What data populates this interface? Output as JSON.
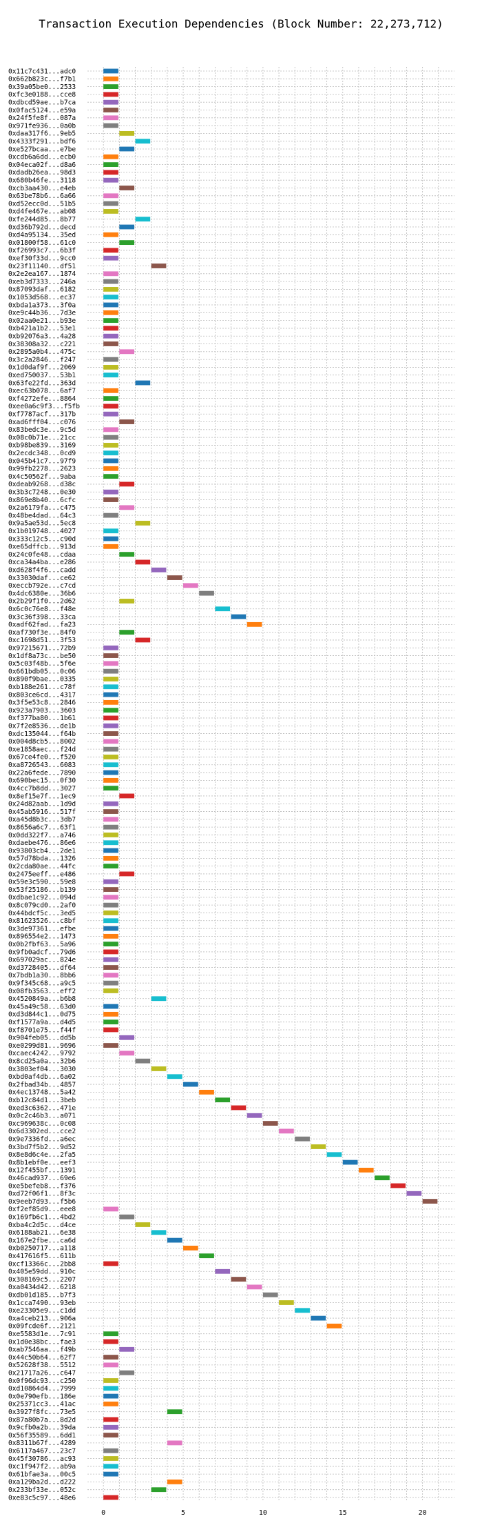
{
  "chart_data": {
    "type": "bar",
    "orientation": "horizontal",
    "title": "Transaction Execution Dependencies (Block Number: 22,273,712)",
    "xlim": [
      -1,
      22
    ],
    "xticks": [
      "0",
      "5",
      "10",
      "15",
      "20"
    ],
    "grid": true,
    "palette": [
      "#1f77b4",
      "#ff7f0e",
      "#2ca02c",
      "#d62728",
      "#9467bd",
      "#8c564b",
      "#e377c2",
      "#7f7f7f",
      "#bcbd22",
      "#17becf"
    ],
    "rows": [
      {
        "label": "0x11c7c431...adc0",
        "start": 0
      },
      {
        "label": "0x662b823c...f7b1",
        "start": 0
      },
      {
        "label": "0x39a05be0...2533",
        "start": 0
      },
      {
        "label": "0xfc3e0188...cce8",
        "start": 0
      },
      {
        "label": "0xdbcd59ae...b7ca",
        "start": 0
      },
      {
        "label": "0x0fac5124...e59a",
        "start": 0
      },
      {
        "label": "0x24f5fe8f...087a",
        "start": 0
      },
      {
        "label": "0x971fe936...0a0b",
        "start": 0
      },
      {
        "label": "0xdaa317f6...9eb5",
        "start": 1
      },
      {
        "label": "0x4333f291...bdf6",
        "start": 2
      },
      {
        "label": "0xe527bcaa...e7be",
        "start": 1
      },
      {
        "label": "0xcdb6a6dd...ecb0",
        "start": 0
      },
      {
        "label": "0x04eca02f...d8a6",
        "start": 0
      },
      {
        "label": "0xdadb26ea...98d3",
        "start": 0
      },
      {
        "label": "0x680b46fe...3118",
        "start": 0
      },
      {
        "label": "0xcb3aa430...e4eb",
        "start": 1
      },
      {
        "label": "0x63be78b6...6a66",
        "start": 0
      },
      {
        "label": "0xd52ecc0d...51b5",
        "start": 0
      },
      {
        "label": "0xd4fe467e...ab08",
        "start": 0
      },
      {
        "label": "0xfe244d85...8b77",
        "start": 2
      },
      {
        "label": "0xd36b792d...decd",
        "start": 1
      },
      {
        "label": "0xd4a95134...35ed",
        "start": 0
      },
      {
        "label": "0x01800f58...61c0",
        "start": 1
      },
      {
        "label": "0xf26993c7...6b3f",
        "start": 0
      },
      {
        "label": "0xef30f33d...9cc0",
        "start": 0
      },
      {
        "label": "0x23f11140...df51",
        "start": 3
      },
      {
        "label": "0x2e2ea167...1874",
        "start": 0
      },
      {
        "label": "0xeb3d7333...246a",
        "start": 0
      },
      {
        "label": "0x87093daf...6182",
        "start": 0
      },
      {
        "label": "0x1053d568...ec37",
        "start": 0
      },
      {
        "label": "0xbda1a373...3f0a",
        "start": 0
      },
      {
        "label": "0xe9c44b36...7d3e",
        "start": 0
      },
      {
        "label": "0x02aa0e21...b93e",
        "start": 0
      },
      {
        "label": "0xb421a1b2...53e1",
        "start": 0
      },
      {
        "label": "0xb92076a3...4a28",
        "start": 0
      },
      {
        "label": "0x38308a32...c221",
        "start": 0
      },
      {
        "label": "0x2895a0b4...475c",
        "start": 1
      },
      {
        "label": "0x3c2a2846...f247",
        "start": 0
      },
      {
        "label": "0x1d0daf9f...2069",
        "start": 0
      },
      {
        "label": "0xed750037...53b1",
        "start": 0
      },
      {
        "label": "0x63fe22fd...363d",
        "start": 2
      },
      {
        "label": "0xec63b078...6af7",
        "start": 0
      },
      {
        "label": "0xf4272efe...8864",
        "start": 0
      },
      {
        "label": "0xee0a6c9f3...f5fb",
        "start": 0
      },
      {
        "label": "0xf7787acf...317b",
        "start": 0
      },
      {
        "label": "0xad6fff04...c076",
        "start": 1
      },
      {
        "label": "0x83bedc3e...9c5d",
        "start": 0
      },
      {
        "label": "0x08c0b71e...21cc",
        "start": 0
      },
      {
        "label": "0xb98be839...3169",
        "start": 0
      },
      {
        "label": "0x2ecdc348...0cd9",
        "start": 0
      },
      {
        "label": "0x045b41c7...97f9",
        "start": 0
      },
      {
        "label": "0x99fb2278...2623",
        "start": 0
      },
      {
        "label": "0x4c50562f...9aba",
        "start": 0
      },
      {
        "label": "0xdeab9268...d38c",
        "start": 1
      },
      {
        "label": "0x3b3c7248...0e30",
        "start": 0
      },
      {
        "label": "0x869e8b40...6cfc",
        "start": 0
      },
      {
        "label": "0x2a6179fa...c475",
        "start": 1
      },
      {
        "label": "0x48be4dad...64c3",
        "start": 0
      },
      {
        "label": "0x9a5ae53d...5ec8",
        "start": 2
      },
      {
        "label": "0x1b019748...4027",
        "start": 0
      },
      {
        "label": "0x333c12c5...c90d",
        "start": 0
      },
      {
        "label": "0xe65dffcb...913d",
        "start": 0
      },
      {
        "label": "0x24c0fe48...cdaa",
        "start": 1
      },
      {
        "label": "0xca34a4ba...e286",
        "start": 2
      },
      {
        "label": "0xd628f4f6...cadd",
        "start": 3
      },
      {
        "label": "0x33030daf...ce62",
        "start": 4
      },
      {
        "label": "0xeccb792e...c7cd",
        "start": 5
      },
      {
        "label": "0x4dc6380e...36b6",
        "start": 6
      },
      {
        "label": "0x2b29f1f0...2d62",
        "start": 1
      },
      {
        "label": "0x6c0c76e8...f48e",
        "start": 7
      },
      {
        "label": "0x3c36f398...33ca",
        "start": 8
      },
      {
        "label": "0xadf62fad...fa23",
        "start": 9
      },
      {
        "label": "0xaf730f3e...84f0",
        "start": 1
      },
      {
        "label": "0xc1698d51...3f53",
        "start": 2
      },
      {
        "label": "0x97215671...72b9",
        "start": 0
      },
      {
        "label": "0x1df8a73c...be50",
        "start": 0
      },
      {
        "label": "0x5c03f48b...5f6e",
        "start": 0
      },
      {
        "label": "0x661bdb05...0c06",
        "start": 0
      },
      {
        "label": "0x890f9bae...0335",
        "start": 0
      },
      {
        "label": "0xb188e261...c78f",
        "start": 0
      },
      {
        "label": "0x803ce6cd...4317",
        "start": 0
      },
      {
        "label": "0x3f5e53c8...2846",
        "start": 0
      },
      {
        "label": "0x923a7903...3603",
        "start": 0
      },
      {
        "label": "0xf377ba80...1b61",
        "start": 0
      },
      {
        "label": "0x7f2e8536...de1b",
        "start": 0
      },
      {
        "label": "0xdc135044...f64b",
        "start": 0
      },
      {
        "label": "0x004d8cb5...8002",
        "start": 0
      },
      {
        "label": "0xe1858aec...f24d",
        "start": 0
      },
      {
        "label": "0x67ce4fe0...f520",
        "start": 0
      },
      {
        "label": "0xa8726543...6083",
        "start": 0
      },
      {
        "label": "0x22a6fede...7890",
        "start": 0
      },
      {
        "label": "0x690bec15...0f30",
        "start": 0
      },
      {
        "label": "0x4cc7b8dd...3027",
        "start": 0
      },
      {
        "label": "0x8ef15e7f...1ec9",
        "start": 1
      },
      {
        "label": "0x24d82aab...1d9d",
        "start": 0
      },
      {
        "label": "0x45ab5916...517f",
        "start": 0
      },
      {
        "label": "0xa45d8b3c...3db7",
        "start": 0
      },
      {
        "label": "0x8656a6c7...63f1",
        "start": 0
      },
      {
        "label": "0x0dd322f7...a746",
        "start": 0
      },
      {
        "label": "0xdaebe476...86e6",
        "start": 0
      },
      {
        "label": "0x93803cb4...2de1",
        "start": 0
      },
      {
        "label": "0x57d78bda...1326",
        "start": 0
      },
      {
        "label": "0x2cda80ae...44fc",
        "start": 0
      },
      {
        "label": "0x2475eeff...e486",
        "start": 1
      },
      {
        "label": "0x59e3c590...59e8",
        "start": 0
      },
      {
        "label": "0x53f25186...b139",
        "start": 0
      },
      {
        "label": "0xdbae1c92...094d",
        "start": 0
      },
      {
        "label": "0x8c079cd0...2af0",
        "start": 0
      },
      {
        "label": "0x44bdcf5c...3ed5",
        "start": 0
      },
      {
        "label": "0x81623526...c8bf",
        "start": 0
      },
      {
        "label": "0x3de97361...efbe",
        "start": 0
      },
      {
        "label": "0x896554e2...1473",
        "start": 0
      },
      {
        "label": "0x0b2fbf63...5a96",
        "start": 0
      },
      {
        "label": "0x9fb0adcf...79d6",
        "start": 0
      },
      {
        "label": "0x697029ac...824e",
        "start": 0
      },
      {
        "label": "0xd3728405...df64",
        "start": 0
      },
      {
        "label": "0x7bdb1a30...8bb6",
        "start": 0
      },
      {
        "label": "0x9f345c68...a9c5",
        "start": 0
      },
      {
        "label": "0x08fb3563...eff2",
        "start": 0
      },
      {
        "label": "0x4520849a...b6b8",
        "start": 3
      },
      {
        "label": "0x45a49c58...63d0",
        "start": 0
      },
      {
        "label": "0xd3d844c1...0d75",
        "start": 0
      },
      {
        "label": "0xf1577a9a...d4d5",
        "start": 0
      },
      {
        "label": "0xf8701e75...f44f",
        "start": 0
      },
      {
        "label": "0x904feb05...dd5b",
        "start": 1
      },
      {
        "label": "0xe0299d81...9696",
        "start": 0
      },
      {
        "label": "0xcaec4242...9792",
        "start": 1
      },
      {
        "label": "0x8cd25a0a...32b6",
        "start": 2
      },
      {
        "label": "0x3803ef04...3030",
        "start": 3
      },
      {
        "label": "0xbd0af4db...6a02",
        "start": 4
      },
      {
        "label": "0x2fbad34b...4857",
        "start": 5
      },
      {
        "label": "0x4ec13748...5a42",
        "start": 6
      },
      {
        "label": "0xb12c84d1...3beb",
        "start": 7
      },
      {
        "label": "0xed3c6362...471e",
        "start": 8
      },
      {
        "label": "0x0c2c46b3...a071",
        "start": 9
      },
      {
        "label": "0xc969638c...0c08",
        "start": 10
      },
      {
        "label": "0x6d3302ed...cce2",
        "start": 11
      },
      {
        "label": "0x9e7336fd...a6ec",
        "start": 12
      },
      {
        "label": "0x3bd7f5b2...9d52",
        "start": 13
      },
      {
        "label": "0x8e8d6c4e...2fa5",
        "start": 14
      },
      {
        "label": "0x8b1ebf0e...eef3",
        "start": 15
      },
      {
        "label": "0x12f455bf...1391",
        "start": 16
      },
      {
        "label": "0x46cad937...69e6",
        "start": 17
      },
      {
        "label": "0xe5befeb8...f376",
        "start": 18
      },
      {
        "label": "0xd72f06f1...8f3c",
        "start": 19
      },
      {
        "label": "0x9eeb7d93...f5b6",
        "start": 20
      },
      {
        "label": "0xf2ef85d9...eee8",
        "start": 0
      },
      {
        "label": "0x169fb6c1...4bd2",
        "start": 1
      },
      {
        "label": "0xba4c2d5c...d4ce",
        "start": 2
      },
      {
        "label": "0x6188ab21...6e38",
        "start": 3
      },
      {
        "label": "0x167e2fbe...ca6d",
        "start": 4
      },
      {
        "label": "0xb0250717...a118",
        "start": 5
      },
      {
        "label": "0x417616f5...611b",
        "start": 6
      },
      {
        "label": "0xcf13366c...2bb8",
        "start": 0
      },
      {
        "label": "0x405e59dd...910c",
        "start": 7
      },
      {
        "label": "0x308169c5...2207",
        "start": 8
      },
      {
        "label": "0xa0434d42...6218",
        "start": 9
      },
      {
        "label": "0xdb01d185...b7f3",
        "start": 10
      },
      {
        "label": "0x1cca7490...93eb",
        "start": 11
      },
      {
        "label": "0xe23305e9...c1dd",
        "start": 12
      },
      {
        "label": "0xa4ceb213...906a",
        "start": 13
      },
      {
        "label": "0x09fcde6f...2121",
        "start": 14
      },
      {
        "label": "0xe5583d1e...7c91",
        "start": 0
      },
      {
        "label": "0x1d0e38bc...fae3",
        "start": 0
      },
      {
        "label": "0xab7546aa...f49b",
        "start": 1
      },
      {
        "label": "0x44c50b64...62f7",
        "start": 0
      },
      {
        "label": "0x52628f38...5512",
        "start": 0
      },
      {
        "label": "0x21717a26...c647",
        "start": 1
      },
      {
        "label": "0x0f96dc93...c250",
        "start": 0
      },
      {
        "label": "0xd10864d4...7999",
        "start": 0
      },
      {
        "label": "0x0e790efb...186e",
        "start": 0
      },
      {
        "label": "0x25371cc3...41ac",
        "start": 0
      },
      {
        "label": "0x3927f8fc...73e5",
        "start": 4
      },
      {
        "label": "0x87a80b7a...8d2d",
        "start": 0
      },
      {
        "label": "0x9cfb0a2b...39da",
        "start": 0
      },
      {
        "label": "0x56f35589...6dd1",
        "start": 0
      },
      {
        "label": "0x8311b67f...4289",
        "start": 4
      },
      {
        "label": "0x6117a467...23c7",
        "start": 0
      },
      {
        "label": "0x45f30786...ac93",
        "start": 0
      },
      {
        "label": "0xc1f947f2...ab9a",
        "start": 0
      },
      {
        "label": "0x61bfae3a...00c5",
        "start": 0
      },
      {
        "label": "0xa129ba2d...d222",
        "start": 4
      },
      {
        "label": "0x233bf33e...052c",
        "start": 3
      },
      {
        "label": "0xe83c5c97...48e6",
        "start": 0
      }
    ]
  }
}
